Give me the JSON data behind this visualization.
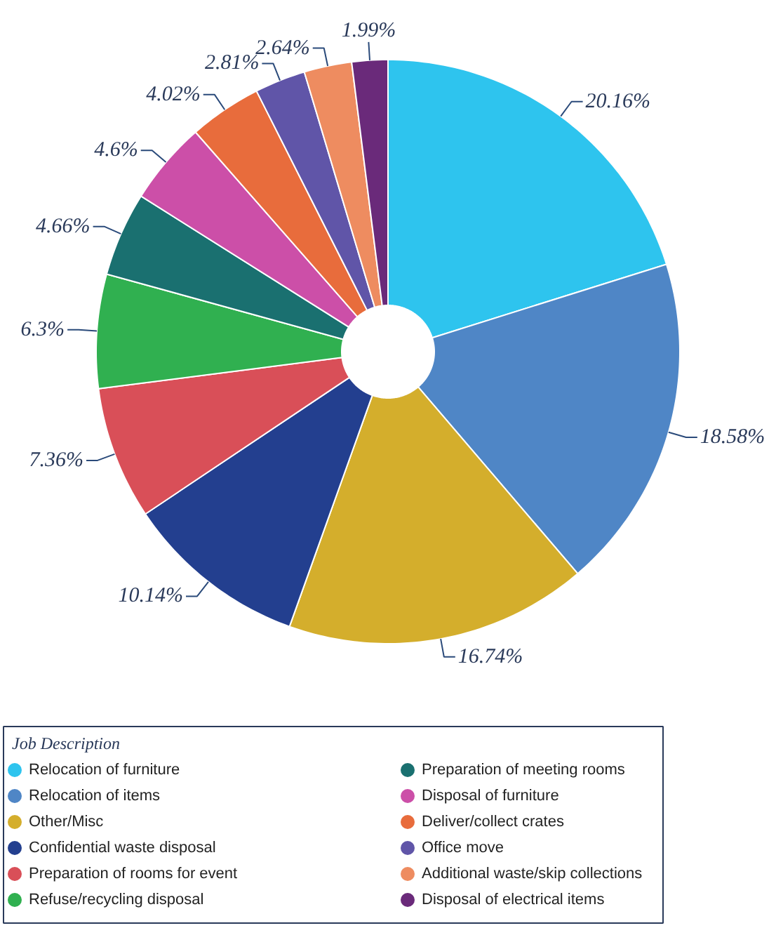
{
  "chart_data": {
    "type": "donut",
    "legend_title": "Job Description",
    "legend": "bottom",
    "data_labels": true,
    "categories": [
      "Relocation of furniture",
      "Relocation of items",
      "Other/Misc",
      "Confidential waste disposal",
      "Preparation of rooms for event",
      "Refuse/recycling disposal",
      "Preparation of meeting rooms",
      "Disposal of furniture",
      "Deliver/collect crates",
      "Office move",
      "Additional waste/skip collections",
      "Disposal of electrical items"
    ],
    "values": [
      20.16,
      18.58,
      16.74,
      10.14,
      7.36,
      6.3,
      4.66,
      4.6,
      4.02,
      2.81,
      2.64,
      1.99
    ],
    "value_labels": [
      "20.16%",
      "18.58%",
      "16.74%",
      "10.14%",
      "7.36%",
      "6.3%",
      "4.66%",
      "4.6%",
      "4.02%",
      "2.81%",
      "2.64%",
      "1.99%"
    ],
    "colors": [
      "#2ec4ee",
      "#4f86c6",
      "#d4ae2c",
      "#233f8f",
      "#d94f58",
      "#30b050",
      "#1a7070",
      "#cc4fa8",
      "#e86c3c",
      "#6055a8",
      "#ee8c60",
      "#6a2a7a"
    ]
  }
}
